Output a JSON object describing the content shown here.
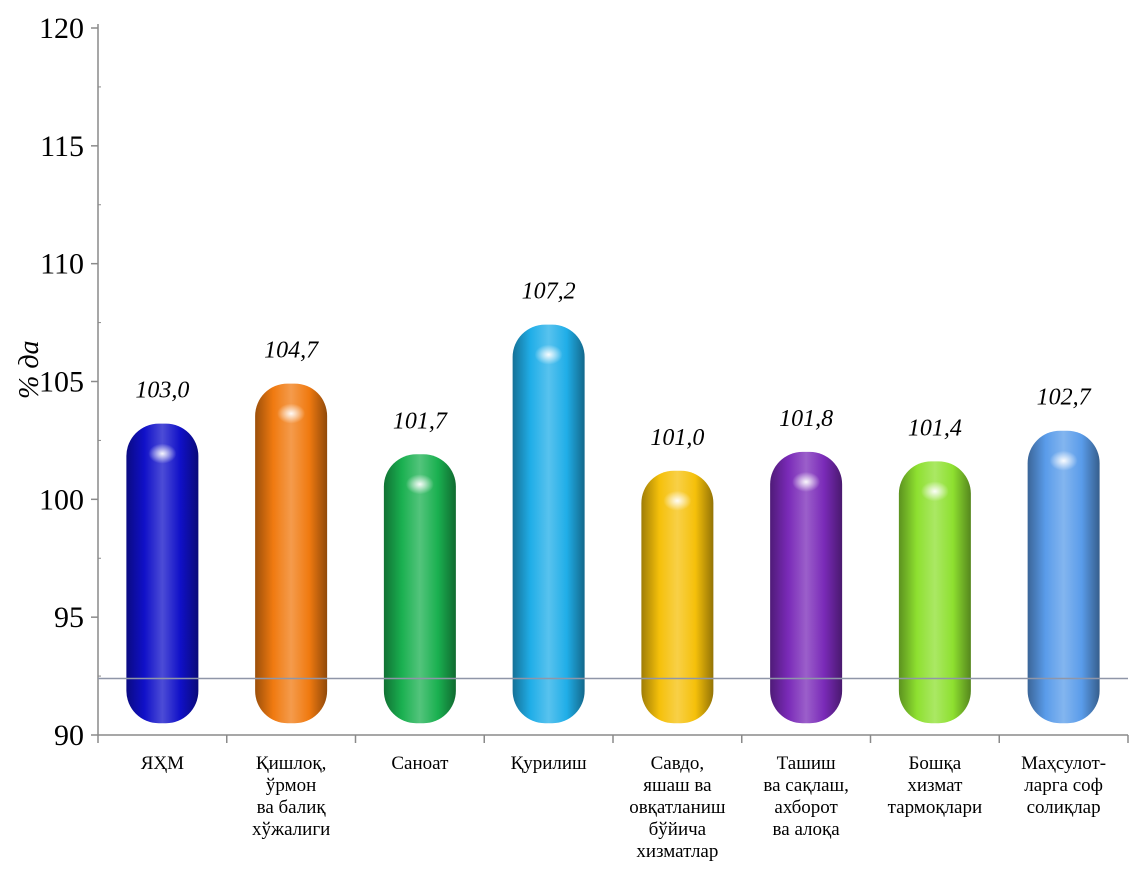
{
  "chart_data": {
    "type": "bar",
    "ylabel": "% да",
    "xlabel": "",
    "ylim": [
      90,
      120
    ],
    "yticks": [
      90,
      95,
      100,
      105,
      110,
      115,
      120
    ],
    "ytick_labels": [
      "90",
      "95",
      "100",
      "105",
      "110",
      "115",
      "120"
    ],
    "categories": [
      "ЯҲМ",
      "Қишлоқ, ўрмон ва балиқ хўжалиги",
      "Саноат",
      "Қурилиш",
      "Савдо, яшаш ва овқатланиш бўйича хизматлар",
      "Ташиш ва сақлаш, ахборот ва алоқа",
      "Бошқа хизмат тармоқлари",
      "Маҳсулот-ларга соф солиқлар"
    ],
    "category_lines": [
      [
        "ЯҲМ"
      ],
      [
        "Қишлоқ,",
        "ўрмон",
        "ва балиқ",
        "хўжалиги"
      ],
      [
        "Саноат"
      ],
      [
        "Қурилиш"
      ],
      [
        "Савдо,",
        "яшаш ва",
        "овқатланиш",
        "бўйича",
        "хизматлар"
      ],
      [
        "Ташиш",
        "ва сақлаш,",
        "ахборот",
        "ва алоқа"
      ],
      [
        "Бошқа",
        "хизмат",
        "тармоқлари"
      ],
      [
        "Маҳсулот-",
        "ларга соф",
        "солиқлар"
      ]
    ],
    "values": [
      103.0,
      104.7,
      101.7,
      107.2,
      101.0,
      101.8,
      101.4,
      102.7
    ],
    "value_labels": [
      "103,0",
      "104,7",
      "101,7",
      "107,2",
      "101,0",
      "101,8",
      "101,4",
      "102,7"
    ],
    "colors": [
      "#1010c8",
      "#f07a10",
      "#1ab050",
      "#20aee8",
      "#f5c00a",
      "#7a2ab8",
      "#8ee030",
      "#5a9cea"
    ],
    "reference_line": 92.4,
    "legend": "none",
    "grid": false
  }
}
